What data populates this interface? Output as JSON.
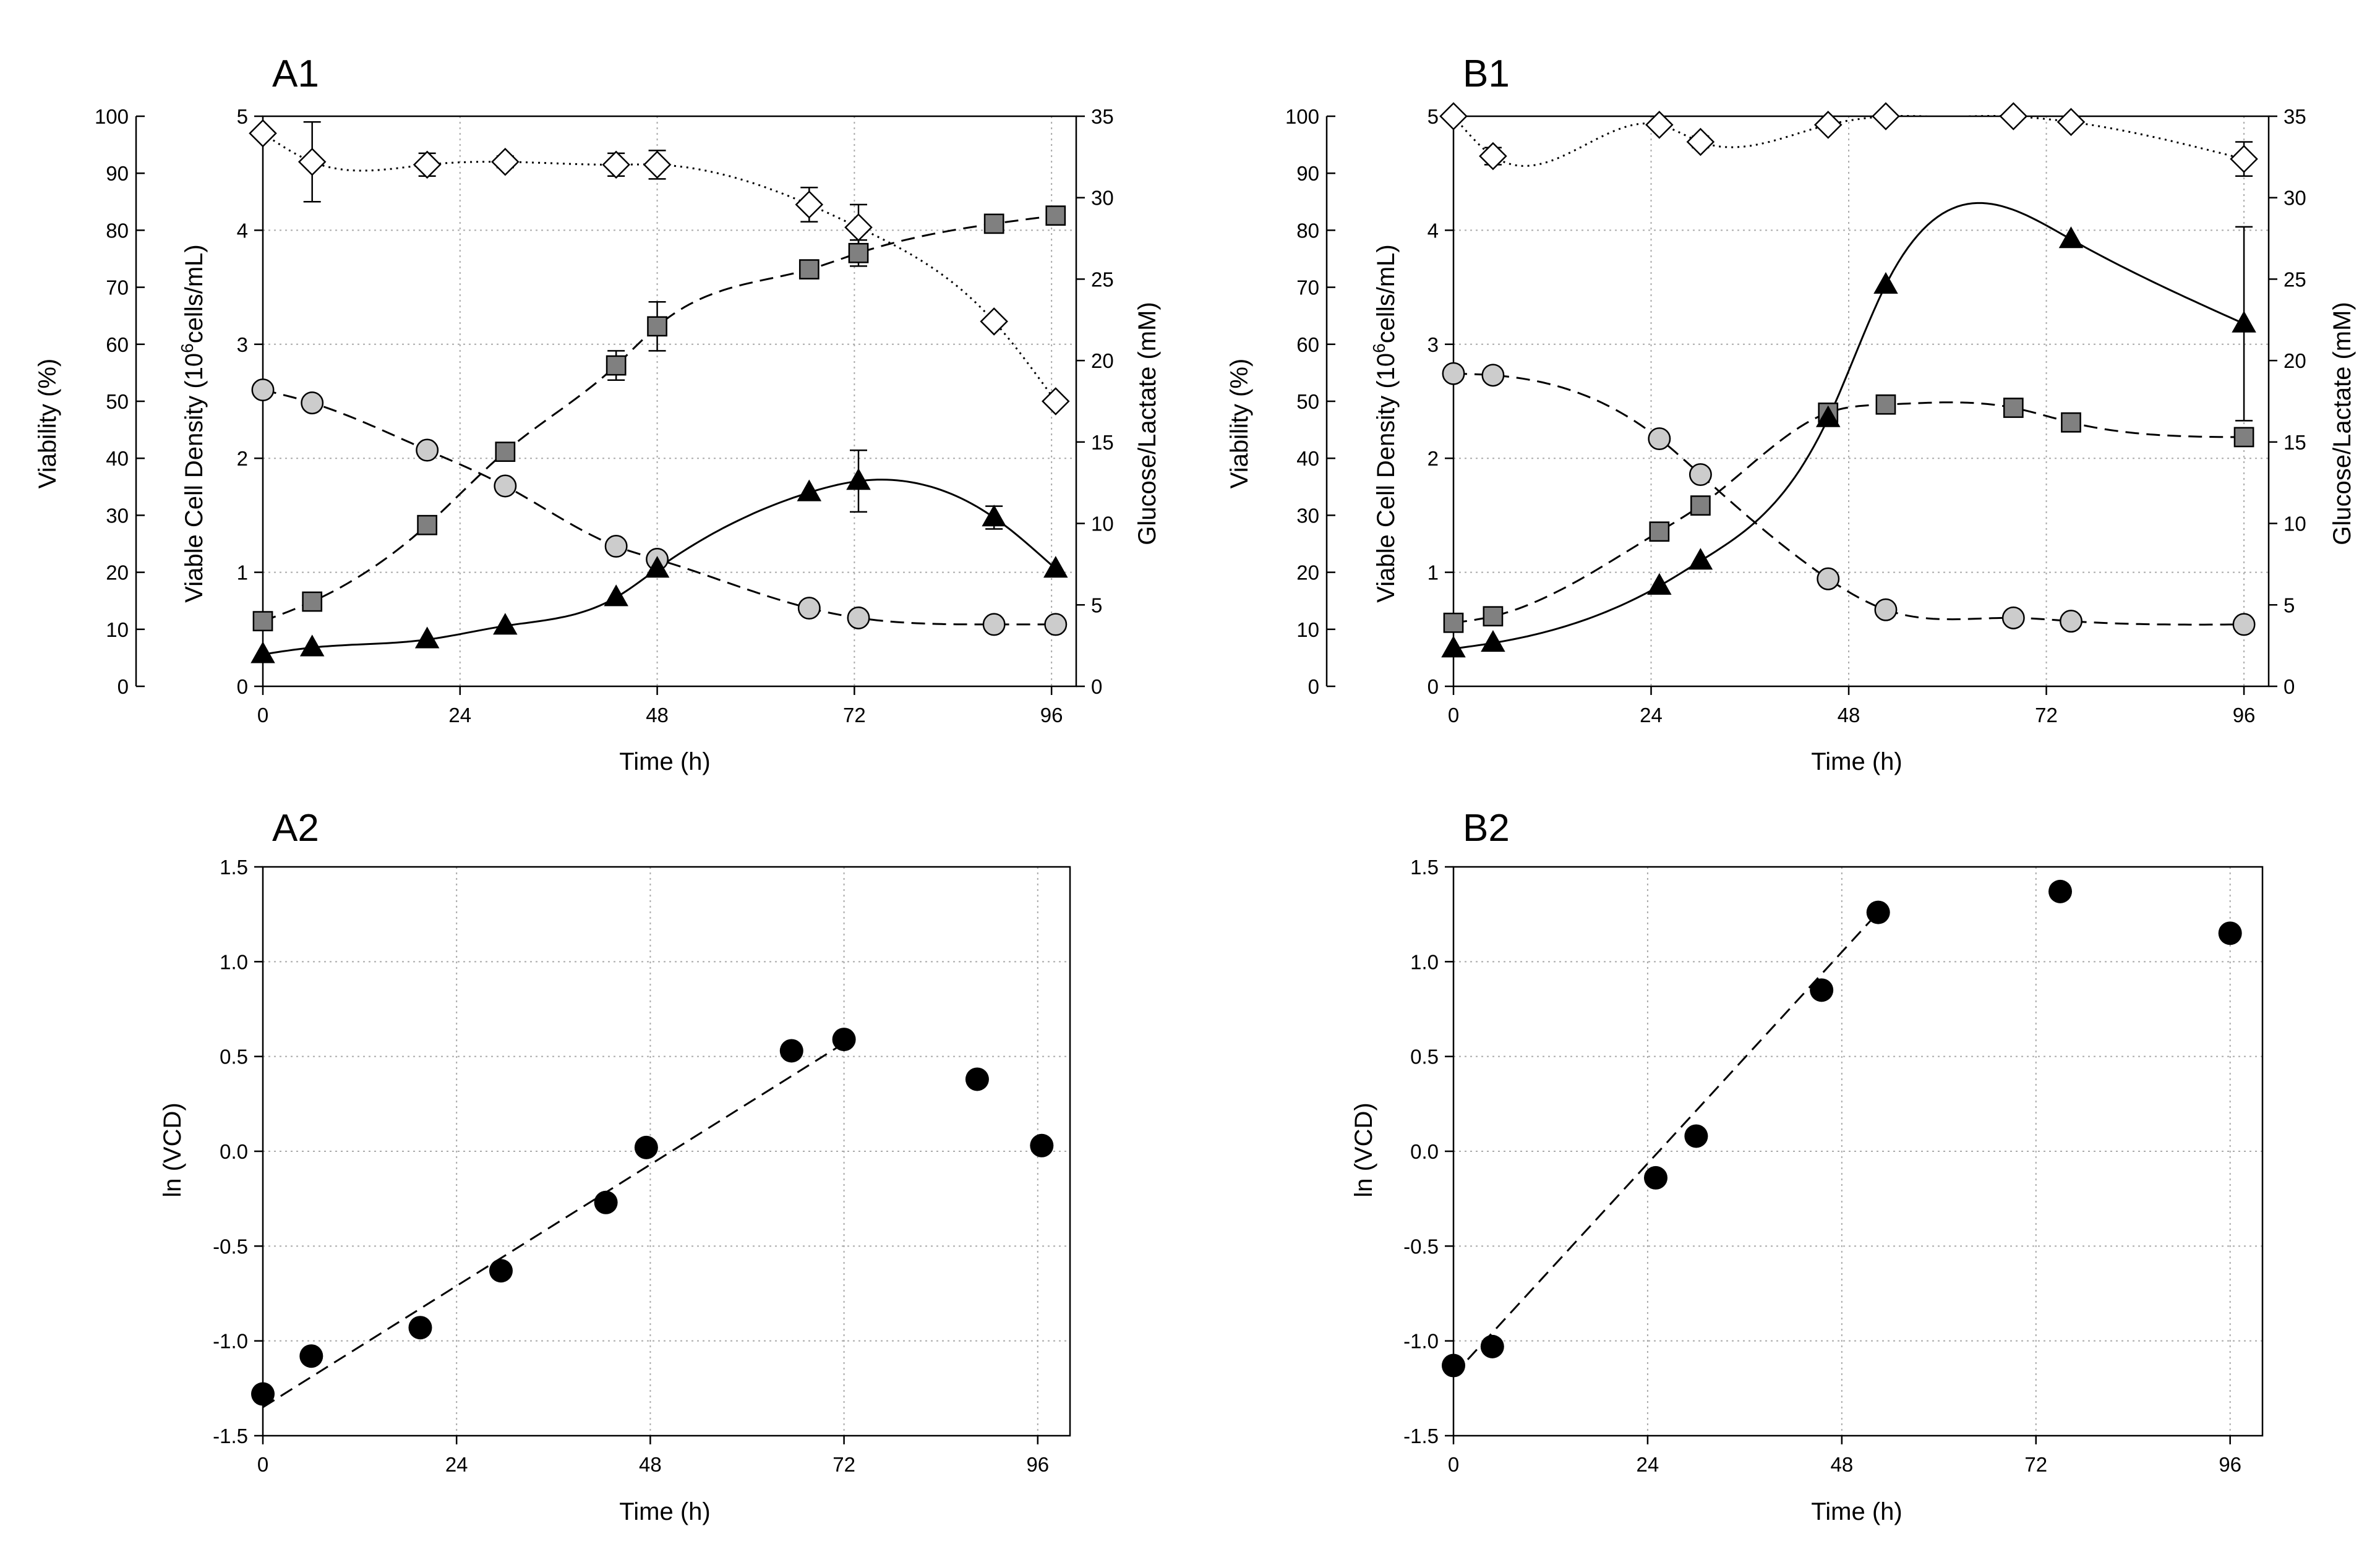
{
  "chart_data": [
    {
      "panel": "A1",
      "type": "scatter",
      "title": "A1",
      "xlabel": "Time (h)",
      "xlim": [
        0,
        99
      ],
      "xticks": [
        0,
        24,
        48,
        72,
        96
      ],
      "y_viability": {
        "label": "Viability (%)",
        "lim": [
          0,
          100
        ],
        "ticks": [
          0,
          10,
          20,
          30,
          40,
          50,
          60,
          70,
          80,
          90,
          100
        ]
      },
      "y_vcd": {
        "label_pre": "Viable Cell Density (10",
        "label_sup": "6",
        "label_post": "cells/mL)",
        "lim": [
          0,
          5
        ],
        "ticks": [
          0,
          1,
          2,
          3,
          4,
          5
        ]
      },
      "y_metabolite": {
        "label": "Glucose/Lactate (mM)",
        "lim": [
          0,
          35
        ],
        "ticks": [
          0,
          5,
          10,
          15,
          20,
          25,
          30,
          35
        ]
      },
      "grid": true,
      "series": [
        {
          "name": "Viability",
          "marker": "diamond",
          "axis": "viability",
          "line": "dotted",
          "x": [
            0,
            6,
            20,
            29.5,
            43,
            48,
            66.5,
            72.5,
            89,
            96.5
          ],
          "y": [
            97,
            92,
            91.5,
            92,
            91.5,
            91.5,
            84.5,
            80.5,
            64,
            50
          ],
          "err": [
            0,
            7,
            2,
            1,
            2,
            2.5,
            3,
            4,
            0,
            0
          ]
        },
        {
          "name": "Glucose",
          "marker": "circle",
          "axis": "metabolite",
          "line": "dashed",
          "x": [
            0,
            6,
            20,
            29.5,
            43,
            48,
            66.5,
            72.5,
            89,
            96.5
          ],
          "y": [
            18.2,
            17.4,
            14.5,
            12.3,
            8.6,
            7.8,
            4.8,
            4.2,
            3.8,
            3.8
          ],
          "err": [
            0,
            0,
            0,
            0,
            0,
            0,
            0,
            0,
            0,
            0
          ]
        },
        {
          "name": "Lactate",
          "marker": "square",
          "axis": "metabolite",
          "line": "dashed",
          "x": [
            0,
            6,
            20,
            29.5,
            43,
            48,
            66.5,
            72.5,
            89,
            96.5
          ],
          "y": [
            4,
            5.2,
            9.9,
            14.4,
            19.7,
            22.1,
            25.6,
            26.6,
            28.4,
            28.9
          ],
          "err": [
            0,
            0,
            0,
            0.5,
            0.9,
            1.5,
            0,
            0.8,
            0,
            0
          ]
        },
        {
          "name": "VCD",
          "marker": "triangle",
          "axis": "vcd",
          "line": "solid",
          "x": [
            0,
            6,
            20,
            29.5,
            43,
            48,
            66.5,
            72.5,
            89,
            96.5
          ],
          "y": [
            0.28,
            0.34,
            0.41,
            0.53,
            0.78,
            1.03,
            1.7,
            1.8,
            1.48,
            1.03
          ],
          "err": [
            0,
            0,
            0,
            0,
            0,
            0,
            0,
            0.27,
            0.1,
            0
          ]
        }
      ]
    },
    {
      "panel": "B1",
      "type": "scatter",
      "title": "B1",
      "xlabel": "Time (h)",
      "xlim": [
        0,
        99
      ],
      "xticks": [
        0,
        24,
        48,
        72,
        96
      ],
      "y_viability": {
        "label": "Viability (%)",
        "lim": [
          0,
          100
        ],
        "ticks": [
          0,
          10,
          20,
          30,
          40,
          50,
          60,
          70,
          80,
          90,
          100
        ]
      },
      "y_vcd": {
        "label_pre": "Viable Cell Density (10",
        "label_sup": "6",
        "label_post": "cells/mL)",
        "lim": [
          0,
          5
        ],
        "ticks": [
          0,
          1,
          2,
          3,
          4,
          5
        ]
      },
      "y_metabolite": {
        "label": "Glucose/Lactate (mM)",
        "lim": [
          0,
          35
        ],
        "ticks": [
          0,
          5,
          10,
          15,
          20,
          25,
          30,
          35
        ]
      },
      "grid": true,
      "series": [
        {
          "name": "Viability",
          "marker": "diamond",
          "axis": "viability",
          "line": "dotted",
          "x": [
            0,
            4.8,
            25,
            30,
            45.5,
            52.5,
            68,
            75,
            96
          ],
          "y": [
            100,
            93,
            98.5,
            95.5,
            98.5,
            100,
            100,
            99,
            92.5
          ],
          "err": [
            0,
            1.5,
            0,
            1,
            0,
            0,
            0,
            0,
            3
          ]
        },
        {
          "name": "Glucose",
          "marker": "circle",
          "axis": "metabolite",
          "line": "dashed",
          "x": [
            0,
            4.8,
            25,
            30,
            45.5,
            52.5,
            68,
            75,
            96
          ],
          "y": [
            19.2,
            19.1,
            15.2,
            13,
            6.6,
            4.7,
            4.2,
            4,
            3.8
          ],
          "err": [
            0,
            0,
            0,
            0,
            0,
            0,
            0,
            0,
            0
          ]
        },
        {
          "name": "Lactate",
          "marker": "square",
          "axis": "metabolite",
          "line": "dashed",
          "x": [
            0,
            4.8,
            25,
            30,
            45.5,
            52.5,
            68,
            75,
            96
          ],
          "y": [
            3.9,
            4.3,
            9.5,
            11.1,
            16.8,
            17.3,
            17.1,
            16.2,
            15.3
          ],
          "err": [
            0,
            0,
            0,
            0,
            0,
            0,
            0,
            0,
            0
          ]
        },
        {
          "name": "VCD",
          "marker": "triangle",
          "axis": "vcd",
          "line": "solid",
          "x": [
            0,
            4.8,
            25,
            30,
            45.5,
            52.5,
            68,
            75,
            96
          ],
          "y": [
            0.33,
            0.38,
            0.88,
            1.1,
            2.35,
            3.52,
            0,
            3.92,
            3.18
          ],
          "err": [
            0,
            0,
            0,
            0,
            0,
            0,
            0,
            0,
            0.85
          ],
          "present": [
            true,
            true,
            true,
            true,
            true,
            true,
            false,
            true,
            true
          ]
        }
      ]
    },
    {
      "panel": "A2",
      "type": "scatter",
      "title": "A2",
      "xlabel": "Time (h)",
      "ylabel": "ln (VCD)",
      "xlim": [
        0,
        100
      ],
      "xticks": [
        0,
        24,
        48,
        72,
        96
      ],
      "ylim": [
        -1.5,
        1.5
      ],
      "yticks": [
        -1.5,
        -1.0,
        -0.5,
        0.0,
        0.5,
        1.0,
        1.5
      ],
      "ytick_labels": [
        "-1.5",
        "-1.0",
        "-0.5",
        "0.0",
        "0.5",
        "1.0",
        "1.5"
      ],
      "grid": true,
      "series": [
        {
          "name": "ln(VCD)",
          "marker": "filled-circle",
          "x": [
            0,
            6,
            19.5,
            29.5,
            42.5,
            47.5,
            65.5,
            72,
            88.5,
            96.5
          ],
          "y": [
            -1.28,
            -1.08,
            -0.93,
            -0.63,
            -0.27,
            0.02,
            0.53,
            0.59,
            0.38,
            0.03
          ]
        }
      ],
      "fit": {
        "x": [
          0,
          72
        ],
        "y": [
          -1.35,
          0.57
        ],
        "style": "dashed"
      }
    },
    {
      "panel": "B2",
      "type": "scatter",
      "title": "B2",
      "xlabel": "Time (h)",
      "ylabel": "ln (VCD)",
      "xlim": [
        0,
        100
      ],
      "xticks": [
        0,
        24,
        48,
        72,
        96
      ],
      "ylim": [
        -1.5,
        1.5
      ],
      "yticks": [
        -1.5,
        -1.0,
        -0.5,
        0.0,
        0.5,
        1.0,
        1.5
      ],
      "ytick_labels": [
        "-1.5",
        "-1.0",
        "-0.5",
        "0.0",
        "0.5",
        "1.0",
        "1.5"
      ],
      "grid": true,
      "series": [
        {
          "name": "ln(VCD)",
          "marker": "filled-circle",
          "x": [
            0,
            4.8,
            25,
            30,
            45.5,
            52.5,
            75,
            96
          ],
          "y": [
            -1.13,
            -1.03,
            -0.14,
            0.08,
            0.85,
            1.26,
            1.37,
            1.15
          ]
        }
      ],
      "fit": {
        "x": [
          0,
          52.5
        ],
        "y": [
          -1.18,
          1.26
        ],
        "style": "dashed"
      }
    }
  ]
}
